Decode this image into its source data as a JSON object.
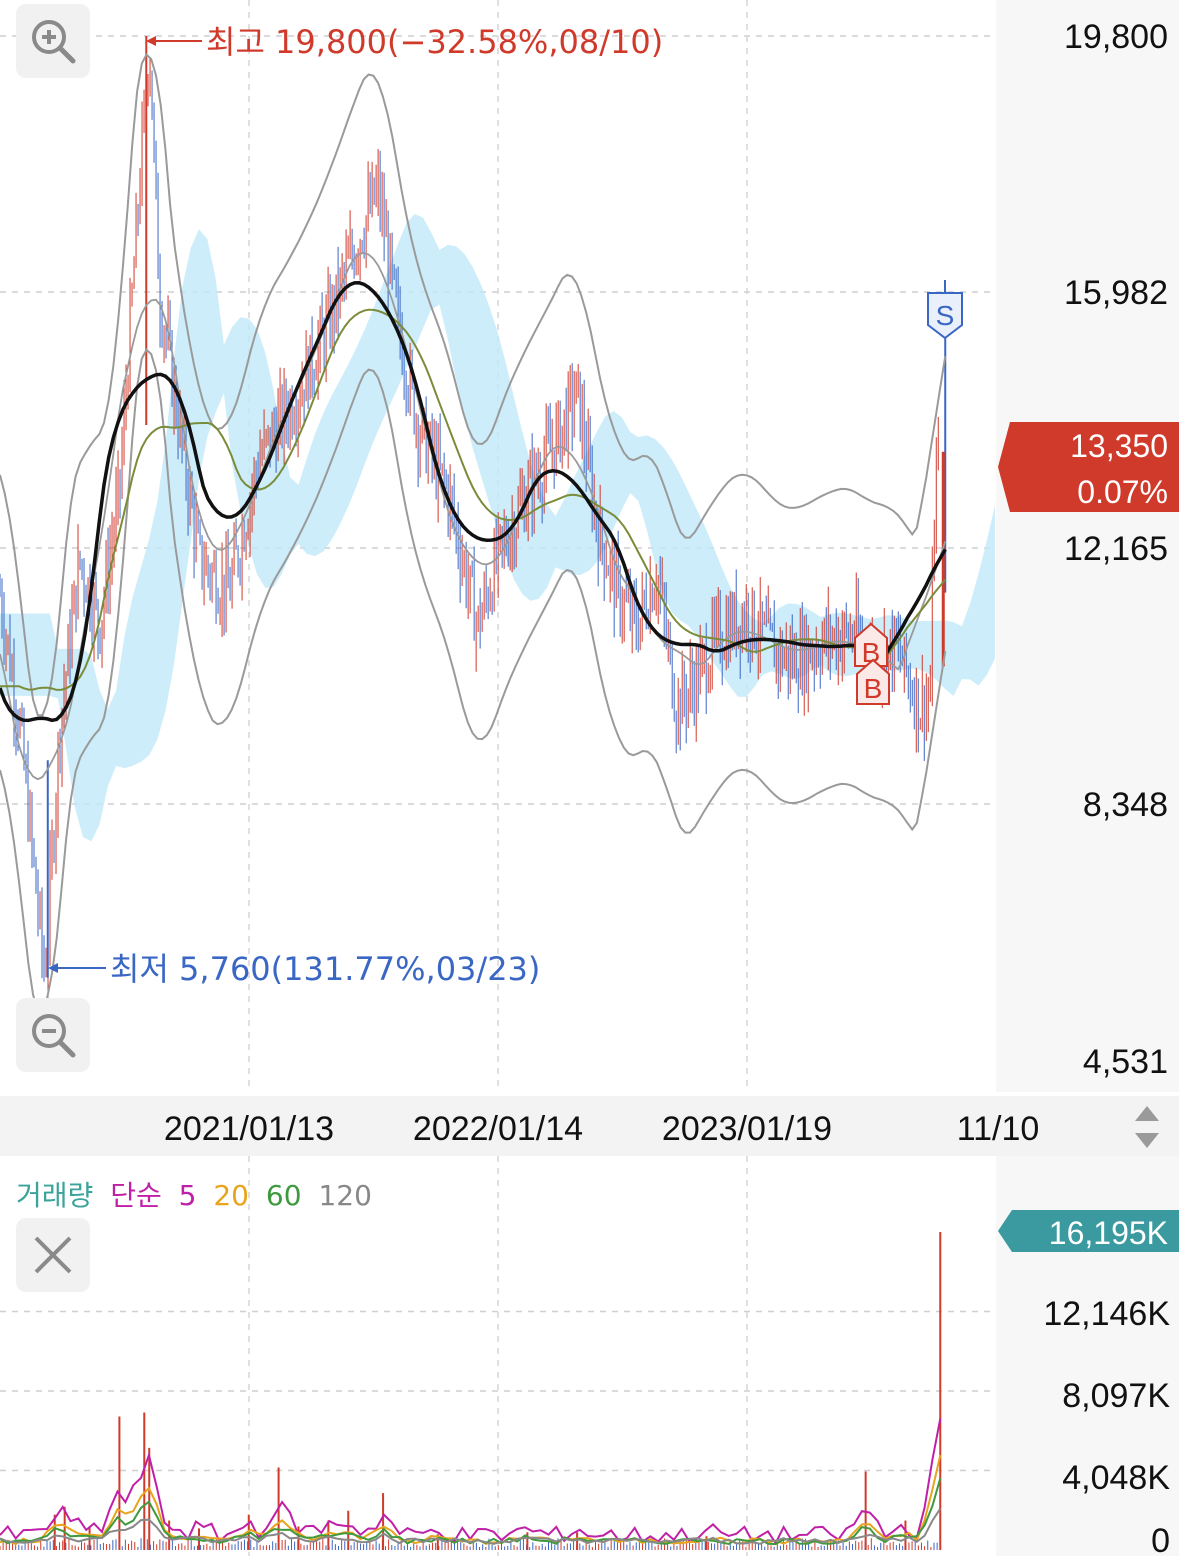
{
  "chart_data": [
    {
      "type": "candlestick",
      "y_ticks": [
        "19,800",
        "15,982",
        "12,165",
        "8,348",
        "4,531"
      ],
      "x_ticks": [
        "2021/01/13",
        "2022/01/14",
        "2023/01/19",
        "11/10"
      ],
      "ylim": [
        4531,
        19800
      ],
      "high_annotation": "최고 19,800(−32.58%,08/10)",
      "low_annotation": "최저 5,760(131.77%,03/23)",
      "current_price": "13,350",
      "current_change": "0.07%",
      "signal_sell": "S",
      "signal_buy": "B",
      "price_path": [
        [
          0,
          11500
        ],
        [
          0.02,
          9500
        ],
        [
          0.045,
          5760
        ],
        [
          0.06,
          9500
        ],
        [
          0.08,
          12000
        ],
        [
          0.1,
          11000
        ],
        [
          0.12,
          13000
        ],
        [
          0.15,
          19800
        ],
        [
          0.16,
          16000
        ],
        [
          0.18,
          14000
        ],
        [
          0.2,
          12000
        ],
        [
          0.23,
          11500
        ],
        [
          0.26,
          13500
        ],
        [
          0.3,
          14500
        ],
        [
          0.33,
          15500
        ],
        [
          0.36,
          16800
        ],
        [
          0.38,
          17500
        ],
        [
          0.4,
          15500
        ],
        [
          0.42,
          14000
        ],
        [
          0.45,
          13000
        ],
        [
          0.48,
          11000
        ],
        [
          0.5,
          12000
        ],
        [
          0.53,
          13000
        ],
        [
          0.56,
          13800
        ],
        [
          0.58,
          14500
        ],
        [
          0.6,
          12500
        ],
        [
          0.62,
          11500
        ],
        [
          0.64,
          11000
        ],
        [
          0.66,
          11800
        ],
        [
          0.68,
          9800
        ],
        [
          0.7,
          10200
        ],
        [
          0.72,
          10800
        ],
        [
          0.75,
          11200
        ],
        [
          0.78,
          10600
        ],
        [
          0.8,
          10500
        ],
        [
          0.83,
          10800
        ],
        [
          0.86,
          10900
        ],
        [
          0.88,
          10500
        ],
        [
          0.9,
          10700
        ],
        [
          0.925,
          9800
        ],
        [
          0.935,
          10000
        ],
        [
          0.94,
          13350
        ]
      ],
      "volume": {
        "legend": [
          "거래량",
          "단순",
          "5",
          "20",
          "60",
          "120"
        ],
        "legend_colors": [
          "#3aa39a",
          "#c020a8",
          "#c020a8",
          "#e7a41c",
          "#3f9a3f",
          "#888888"
        ],
        "y_ticks": [
          "16,195K",
          "12,146K",
          "8,097K",
          "4,048K",
          "0"
        ],
        "current_label": "16,195K",
        "ylim": [
          0,
          16195
        ],
        "spikes": [
          [
            0.055,
            1800
          ],
          [
            0.065,
            2200
          ],
          [
            0.09,
            1200
          ],
          [
            0.12,
            6800
          ],
          [
            0.145,
            7000
          ],
          [
            0.15,
            5200
          ],
          [
            0.17,
            1500
          ],
          [
            0.2,
            1100
          ],
          [
            0.25,
            1800
          ],
          [
            0.28,
            4200
          ],
          [
            0.3,
            1200
          ],
          [
            0.33,
            1500
          ],
          [
            0.35,
            2000
          ],
          [
            0.385,
            2900
          ],
          [
            0.44,
            800
          ],
          [
            0.53,
            900
          ],
          [
            0.58,
            900
          ],
          [
            0.71,
            700
          ],
          [
            0.87,
            4000
          ],
          [
            0.91,
            1500
          ],
          [
            0.945,
            16195
          ]
        ]
      }
    }
  ],
  "ui": {
    "zoom_in_icon": "zoom-in-icon",
    "zoom_out_icon": "zoom-out-icon",
    "close_icon": "close-icon",
    "scroll_icon": "up-down-arrows-icon",
    "colors": {
      "up": "#d03a2b",
      "down": "#3a66c4",
      "ichimoku": "#bfe8f8",
      "ma_thick": "#111111",
      "ma_olive": "#7a8c3a",
      "band_gray": "#9a9a9a",
      "volume_badge": "#3a9aa0",
      "price_badge": "#d03a2b"
    }
  }
}
